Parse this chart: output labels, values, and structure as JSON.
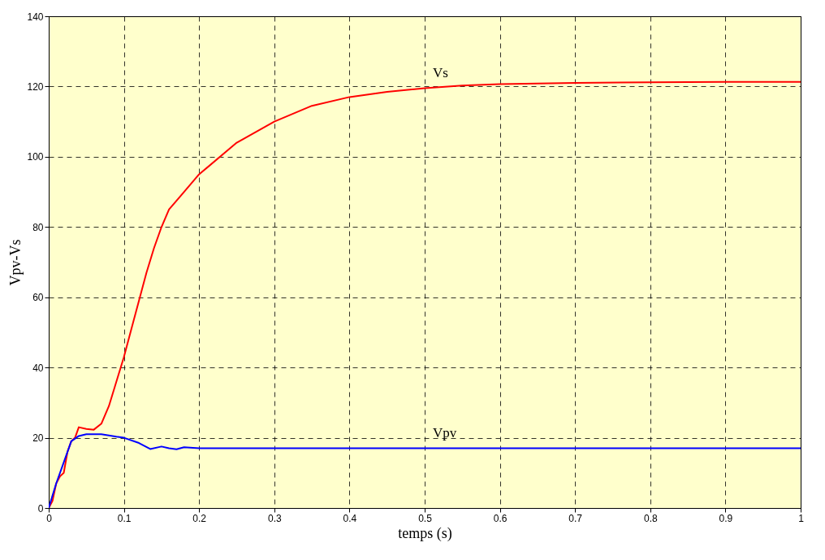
{
  "chart_data": {
    "type": "line",
    "xlabel": "temps (s)",
    "ylabel": "Vpv-Vs",
    "xlim": [
      0,
      1
    ],
    "ylim": [
      0,
      140
    ],
    "xticks": [
      0,
      0.1,
      0.2,
      0.3,
      0.4,
      0.5,
      0.6,
      0.7,
      0.8,
      0.9,
      1
    ],
    "yticks": [
      0,
      20,
      40,
      60,
      80,
      100,
      120,
      140
    ],
    "grid": true,
    "legend": false,
    "series": [
      {
        "name": "Vs",
        "color": "#ff0000",
        "x": [
          0,
          0.005,
          0.01,
          0.015,
          0.02,
          0.025,
          0.03,
          0.035,
          0.04,
          0.05,
          0.06,
          0.07,
          0.08,
          0.09,
          0.1,
          0.11,
          0.12,
          0.13,
          0.14,
          0.15,
          0.16,
          0.18,
          0.2,
          0.25,
          0.3,
          0.35,
          0.4,
          0.45,
          0.5,
          0.55,
          0.6,
          0.7,
          0.8,
          0.9,
          1
        ],
        "values": [
          0,
          2,
          7,
          9,
          10,
          16,
          19,
          20,
          23,
          22.5,
          22.3,
          24,
          29,
          36,
          43,
          51,
          59,
          67,
          74,
          80,
          85,
          90,
          95,
          104,
          110,
          114.5,
          117,
          118.5,
          119.5,
          120.3,
          120.7,
          121,
          121.2,
          121.3,
          121.3
        ]
      },
      {
        "name": "Vpv",
        "color": "#0000ff",
        "x": [
          0,
          0.01,
          0.02,
          0.03,
          0.04,
          0.05,
          0.07,
          0.09,
          0.1,
          0.12,
          0.135,
          0.15,
          0.16,
          0.17,
          0.18,
          0.2,
          0.3,
          0.4,
          0.5,
          0.6,
          0.7,
          0.8,
          0.9,
          1
        ],
        "values": [
          0,
          7,
          13,
          19,
          20.5,
          21,
          21,
          20.3,
          20,
          18.5,
          16.8,
          17.5,
          17,
          16.7,
          17.3,
          17,
          17,
          17,
          17,
          17,
          17,
          17,
          17,
          17
        ]
      }
    ]
  }
}
